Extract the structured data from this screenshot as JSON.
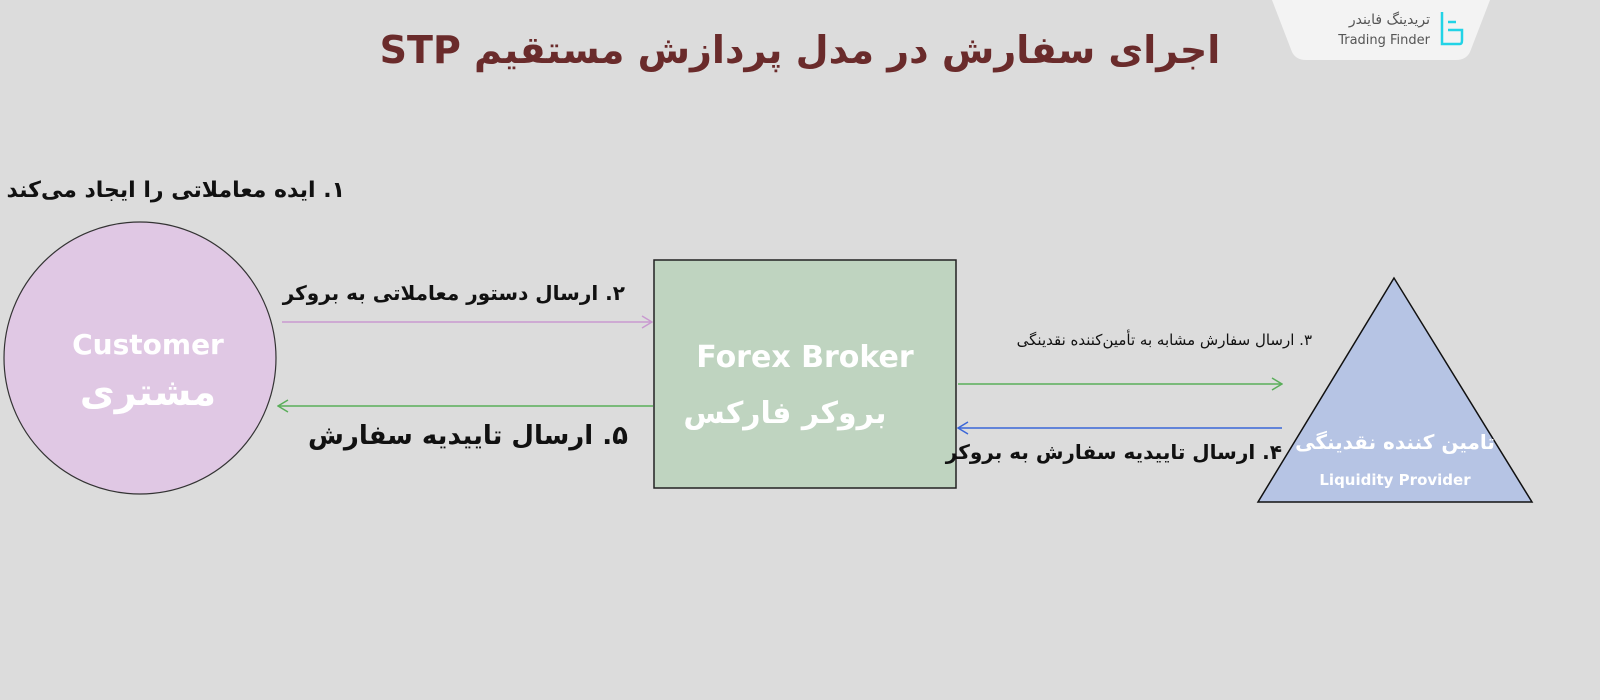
{
  "title": "اجرای سفارش در مدل پردازش مستقیم STP",
  "logo": {
    "fa": "تریدینگ فایندر",
    "en": "Trading Finder",
    "icon": "trading-finder-logo",
    "color": "#22d3e6"
  },
  "nodes": {
    "customer": {
      "en": "Customer",
      "fa": "مشتری",
      "fill": "#e0c8e4"
    },
    "broker": {
      "en": "Forex Broker",
      "fa": "بروکر فارکس",
      "fill": "#bfd4c0"
    },
    "provider": {
      "fa": "تامین کننده نقدینگی",
      "en": "Liquidity Provider",
      "fill": "#b6c4e4"
    }
  },
  "steps": {
    "s1": "۱. ایده معاملاتی را ایجاد می‌کند",
    "s2": "۲. ارسال دستور معاملاتی به بروکر",
    "s3": "۳. ارسال سفارش مشابه به تأمین‌کننده نقدینگی",
    "s4": "۴. ارسال تاییدیه سفارش به بروکر",
    "s5": "۵. ارسال تاییدیه سفارش"
  },
  "colors": {
    "purple_arrow": "#c99ad0",
    "green_arrow": "#5aae5a",
    "blue_arrow": "#3a66d8",
    "title": "#6a2b2b"
  }
}
